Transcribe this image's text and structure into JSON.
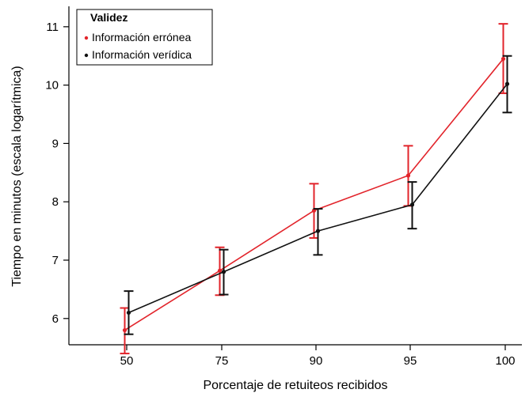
{
  "chart_data": {
    "type": "line",
    "xlabel": "Porcentaje de retuiteos recibidos",
    "ylabel": "Tiempo en minutos (escala logarítmica)",
    "categories": [
      "50",
      "75",
      "90",
      "95",
      "100"
    ],
    "yticks": [
      "6",
      "7",
      "8",
      "9",
      "10",
      "11"
    ],
    "ylim": [
      5.55,
      11.35
    ],
    "legend": {
      "title": "Validez",
      "position": "top-left"
    },
    "grid": false,
    "series": [
      {
        "name": "Información errónea",
        "color": "#e2242b",
        "values": [
          5.8,
          6.82,
          7.85,
          8.45,
          10.45
        ],
        "err_low": [
          5.4,
          6.4,
          7.38,
          7.93,
          9.86
        ],
        "err_high": [
          6.18,
          7.22,
          8.31,
          8.96,
          11.05
        ]
      },
      {
        "name": "Información verídica",
        "color": "#111111",
        "values": [
          6.1,
          6.8,
          7.5,
          7.95,
          10.02
        ],
        "err_low": [
          5.73,
          6.41,
          7.09,
          7.54,
          9.53
        ],
        "err_high": [
          6.47,
          7.18,
          7.88,
          8.34,
          10.5
        ]
      }
    ]
  }
}
